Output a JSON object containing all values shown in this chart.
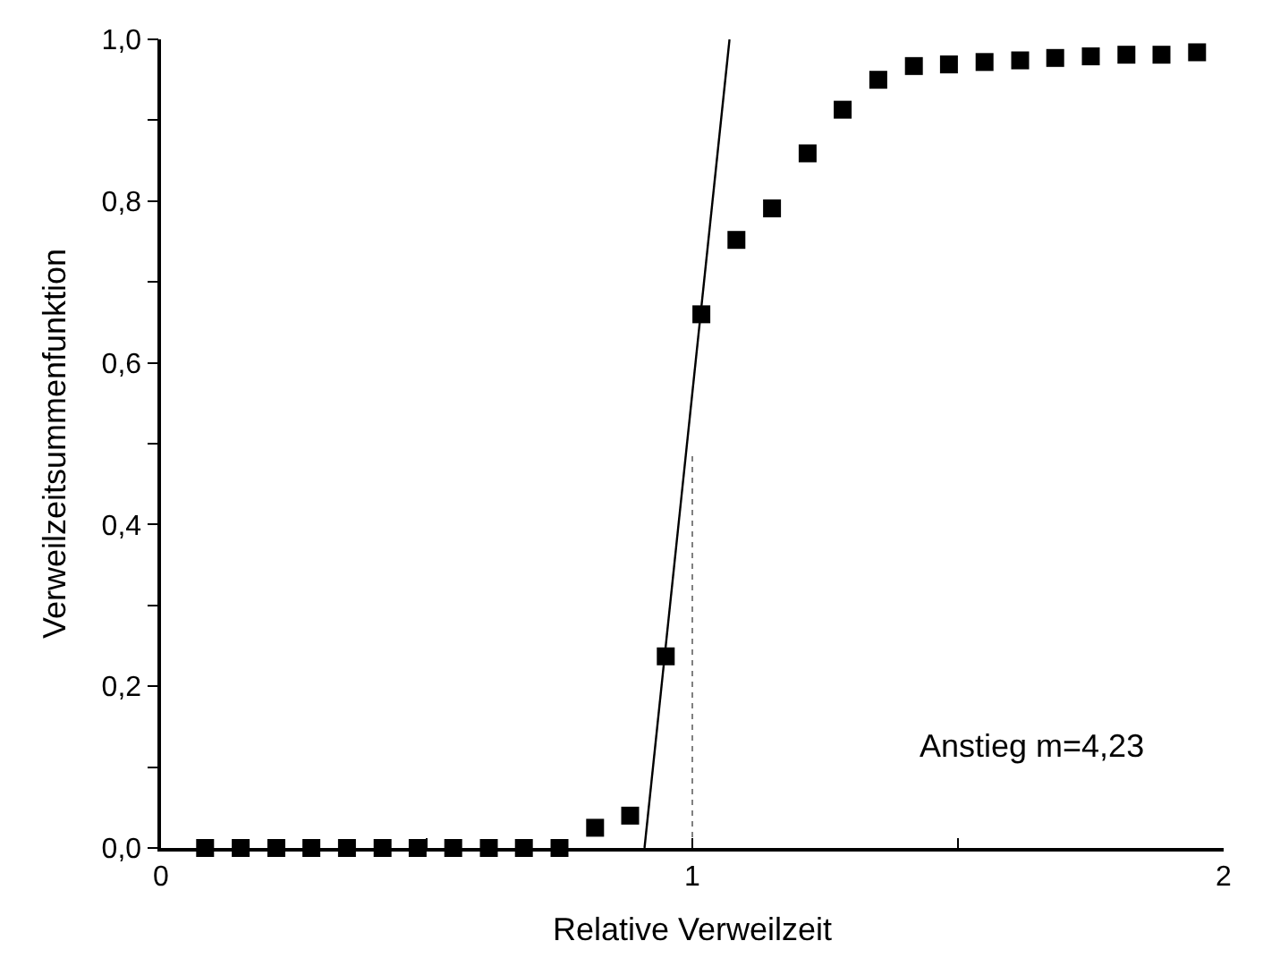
{
  "chart_data": {
    "type": "scatter",
    "xlabel": "Relative Verweilzeit",
    "ylabel": "Verweilzeitsummenfunktion",
    "xlim": [
      0,
      2
    ],
    "ylim": [
      0,
      1.0
    ],
    "xticks": [
      0,
      {
        "value": 0.5,
        "label": null
      },
      1,
      {
        "value": 1.5,
        "label": null
      },
      2
    ],
    "yticks": [
      {
        "value": 0,
        "label": "0,0"
      },
      {
        "value": 0.1,
        "label": null
      },
      {
        "value": 0.2,
        "label": "0,2"
      },
      {
        "value": 0.3,
        "label": null
      },
      {
        "value": 0.4,
        "label": "0,4"
      },
      {
        "value": 0.5,
        "label": null
      },
      {
        "value": 0.6,
        "label": "0,6"
      },
      {
        "value": 0.7,
        "label": null
      },
      {
        "value": 0.8,
        "label": "0,8"
      },
      {
        "value": 0.9,
        "label": null
      },
      {
        "value": 1.0,
        "label": "1,0"
      }
    ],
    "series": [
      {
        "marker": "square",
        "color": "#000000",
        "x": [
          0.083,
          0.15,
          0.217,
          0.283,
          0.35,
          0.417,
          0.483,
          0.55,
          0.617,
          0.683,
          0.75,
          0.817,
          0.883,
          0.95,
          1.017,
          1.083,
          1.15,
          1.217,
          1.283,
          1.35,
          1.417,
          1.483,
          1.55,
          1.617,
          1.683,
          1.75,
          1.817,
          1.883,
          1.95
        ],
        "values": [
          0,
          0,
          0,
          0,
          0,
          0,
          0,
          0,
          0,
          0,
          0,
          0.025,
          0.04,
          0.237,
          0.66,
          0.752,
          0.791,
          0.859,
          0.913,
          0.95,
          0.967,
          0.969,
          0.972,
          0.974,
          0.977,
          0.979,
          0.981,
          0.981,
          0.984
        ]
      },
      {
        "type": "line",
        "marker": "none",
        "line_style": "solid",
        "color": "#000000",
        "x": [
          0.91,
          1.07
        ],
        "values": [
          0,
          1.0
        ]
      },
      {
        "type": "line",
        "marker": "none",
        "line_style": "dotted",
        "color": "#808080",
        "x": [
          1,
          1
        ],
        "values": [
          0,
          0.49
        ]
      }
    ],
    "annotations": [
      "Anstieg m=4,23"
    ]
  }
}
